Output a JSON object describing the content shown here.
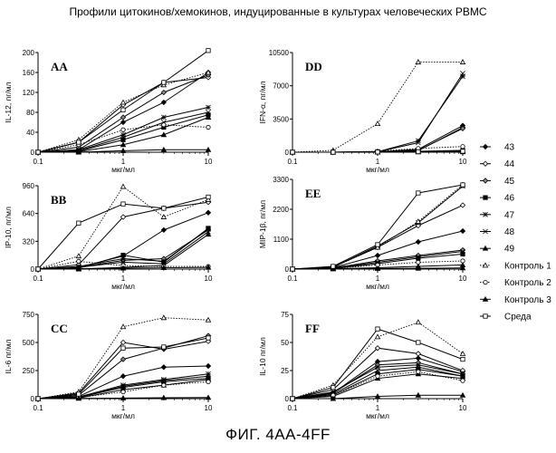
{
  "title": "Профили цитокинов/хемокинов, индуцированные в культурах человеческих PBMC",
  "caption": "ФИГ. 4АА-4FF",
  "legend": [
    {
      "label": "43",
      "marker": "diamond-filled",
      "dash": "solid"
    },
    {
      "label": "44",
      "marker": "diamond-open",
      "dash": "solid"
    },
    {
      "label": "45",
      "marker": "diamond-grey",
      "dash": "solid"
    },
    {
      "label": "46",
      "marker": "square-filled",
      "dash": "solid"
    },
    {
      "label": "47",
      "marker": "star",
      "dash": "solid"
    },
    {
      "label": "48",
      "marker": "x",
      "dash": "solid"
    },
    {
      "label": "49",
      "marker": "triangle-filled",
      "dash": "solid"
    },
    {
      "label": "Контроль 1",
      "marker": "triangle-open",
      "dash": "dotted"
    },
    {
      "label": "Контроль 2",
      "marker": "circle-open",
      "dash": "dotted"
    },
    {
      "label": "Контроль 3",
      "marker": "triangle-filled",
      "dash": "solid"
    },
    {
      "label": "Среда",
      "marker": "square-open",
      "dash": "solid"
    }
  ],
  "chart_data": [
    {
      "id": "AA",
      "panel_label": "AA",
      "type": "line",
      "xscale": "log",
      "xlabel": "мкг/мл",
      "ylabel": "IL-12, пг/мл",
      "xticks": [
        "0.1",
        "1",
        "10"
      ],
      "yticks": [
        "0",
        "40",
        "80",
        "120",
        "160",
        "200"
      ],
      "ylim": [
        0,
        200
      ],
      "x": [
        0.1,
        0.3,
        1,
        3,
        10
      ],
      "series": [
        {
          "values": [
            0,
            5,
            60,
            100,
            160
          ]
        },
        {
          "values": [
            0,
            20,
            95,
            140,
            150
          ]
        },
        {
          "values": [
            0,
            10,
            70,
            120,
            155
          ]
        },
        {
          "values": [
            0,
            2,
            25,
            50,
            75
          ]
        },
        {
          "values": [
            0,
            5,
            35,
            70,
            90
          ]
        },
        {
          "values": [
            0,
            3,
            30,
            60,
            80
          ]
        },
        {
          "values": [
            0,
            1,
            15,
            35,
            70
          ]
        },
        {
          "values": [
            0,
            25,
            100,
            135,
            160
          ]
        },
        {
          "values": [
            0,
            15,
            45,
            55,
            50
          ]
        },
        {
          "values": [
            0,
            0,
            3,
            5,
            5
          ]
        },
        {
          "values": [
            0,
            20,
            85,
            140,
            210
          ]
        }
      ]
    },
    {
      "id": "DD",
      "panel_label": "DD",
      "type": "line",
      "xscale": "log",
      "xlabel": "мкг/мл",
      "ylabel": "IFN-α, пг/мл",
      "xticks": [
        "0.1",
        "1",
        "10"
      ],
      "yticks": [
        "0",
        "3500",
        "7000",
        "10500"
      ],
      "ylim": [
        0,
        10500
      ],
      "x": [
        0.1,
        0.3,
        1,
        3,
        10
      ],
      "series": [
        {
          "values": [
            0,
            0,
            50,
            300,
            2800
          ]
        },
        {
          "values": [
            0,
            0,
            30,
            150,
            2600
          ]
        },
        {
          "values": [
            0,
            0,
            30,
            200,
            2500
          ]
        },
        {
          "values": [
            0,
            0,
            20,
            100,
            200
          ]
        },
        {
          "values": [
            0,
            0,
            50,
            1200,
            8000
          ]
        },
        {
          "values": [
            0,
            0,
            40,
            1000,
            8300
          ]
        },
        {
          "values": [
            0,
            0,
            10,
            50,
            150
          ]
        },
        {
          "values": [
            0,
            200,
            3000,
            9500,
            9500
          ]
        },
        {
          "values": [
            0,
            0,
            100,
            400,
            600
          ]
        },
        {
          "values": [
            0,
            0,
            10,
            20,
            30
          ]
        },
        {
          "values": [
            0,
            0,
            20,
            50,
            100
          ]
        }
      ]
    },
    {
      "id": "BB",
      "panel_label": "BB",
      "type": "line",
      "xscale": "log",
      "xlabel": "мкг/мл",
      "ylabel": "IP-10, пг/мл",
      "xticks": [
        "0.1",
        "1",
        "10"
      ],
      "yticks": [
        "0",
        "320",
        "640",
        "960"
      ],
      "ylim": [
        0,
        960
      ],
      "x": [
        0.1,
        0.3,
        1,
        3,
        10
      ],
      "series": [
        {
          "values": [
            0,
            20,
            150,
            450,
            650
          ]
        },
        {
          "values": [
            0,
            50,
            600,
            700,
            770
          ]
        },
        {
          "values": [
            0,
            20,
            100,
            120,
            450
          ]
        },
        {
          "values": [
            0,
            10,
            160,
            80,
            470
          ]
        },
        {
          "values": [
            0,
            30,
            120,
            90,
            460
          ]
        },
        {
          "values": [
            0,
            20,
            80,
            60,
            430
          ]
        },
        {
          "values": [
            0,
            0,
            20,
            40,
            400
          ]
        },
        {
          "values": [
            0,
            150,
            950,
            600,
            800
          ]
        },
        {
          "values": [
            0,
            90,
            40,
            30,
            30
          ]
        },
        {
          "values": [
            0,
            5,
            10,
            15,
            20
          ]
        },
        {
          "values": [
            0,
            530,
            750,
            700,
            830
          ]
        }
      ]
    },
    {
      "id": "EE",
      "panel_label": "EE",
      "type": "line",
      "xscale": "log",
      "xlabel": "мкг/мл",
      "ylabel": "MIP-1β, пг/мл",
      "xticks": [
        "0.1",
        "1",
        "10"
      ],
      "yticks": [
        "0",
        "1100",
        "2200",
        "3300"
      ],
      "ylim": [
        0,
        3300
      ],
      "x": [
        0.1,
        0.3,
        1,
        3,
        10
      ],
      "series": [
        {
          "values": [
            0,
            50,
            500,
            1000,
            1400
          ]
        },
        {
          "values": [
            0,
            80,
            800,
            1600,
            2350
          ]
        },
        {
          "values": [
            0,
            40,
            300,
            500,
            700
          ]
        },
        {
          "values": [
            0,
            20,
            200,
            400,
            550
          ]
        },
        {
          "values": [
            0,
            60,
            850,
            1700,
            3050
          ]
        },
        {
          "values": [
            0,
            30,
            250,
            450,
            650
          ]
        },
        {
          "values": [
            0,
            10,
            50,
            100,
            150
          ]
        },
        {
          "values": [
            0,
            70,
            800,
            1750,
            3100
          ]
        },
        {
          "values": [
            0,
            20,
            150,
            250,
            300
          ]
        },
        {
          "values": [
            0,
            5,
            20,
            30,
            40
          ]
        },
        {
          "values": [
            0,
            100,
            900,
            2800,
            3100
          ]
        }
      ]
    },
    {
      "id": "CC",
      "panel_label": "CC",
      "type": "line",
      "xscale": "log",
      "xlabel": "мкг/мл",
      "ylabel": "IL-6 пг/мл",
      "xticks": [
        "0.1",
        "1",
        "10"
      ],
      "yticks": [
        "0",
        "250",
        "500",
        "750"
      ],
      "ylim": [
        0,
        750
      ],
      "x": [
        0.1,
        0.3,
        1,
        3,
        10
      ],
      "series": [
        {
          "values": [
            0,
            20,
            200,
            280,
            290
          ]
        },
        {
          "values": [
            0,
            50,
            500,
            440,
            510
          ]
        },
        {
          "values": [
            0,
            30,
            350,
            450,
            560
          ]
        },
        {
          "values": [
            0,
            10,
            100,
            150,
            180
          ]
        },
        {
          "values": [
            0,
            15,
            120,
            170,
            220
          ]
        },
        {
          "values": [
            0,
            10,
            110,
            160,
            200
          ]
        },
        {
          "values": [
            0,
            5,
            80,
            120,
            170
          ]
        },
        {
          "values": [
            0,
            60,
            640,
            720,
            700
          ]
        },
        {
          "values": [
            0,
            10,
            60,
            120,
            150
          ]
        },
        {
          "values": [
            0,
            2,
            5,
            8,
            10
          ]
        },
        {
          "values": [
            0,
            40,
            450,
            460,
            540
          ]
        }
      ]
    },
    {
      "id": "FF",
      "panel_label": "FF",
      "type": "line",
      "xscale": "log",
      "xlabel": "мкг/мл",
      "ylabel": "IL-10 пг/мл",
      "xticks": [
        "0.1",
        "1",
        "10"
      ],
      "yticks": [
        "0",
        "25",
        "50",
        "75"
      ],
      "ylim": [
        0,
        75
      ],
      "x": [
        0.1,
        0.3,
        1,
        3,
        10
      ],
      "series": [
        {
          "values": [
            0,
            5,
            33,
            36,
            24
          ]
        },
        {
          "values": [
            0,
            8,
            45,
            40,
            25
          ]
        },
        {
          "values": [
            0,
            5,
            30,
            32,
            22
          ]
        },
        {
          "values": [
            0,
            3,
            22,
            26,
            20
          ]
        },
        {
          "values": [
            0,
            6,
            28,
            30,
            22
          ]
        },
        {
          "values": [
            0,
            4,
            25,
            28,
            20
          ]
        },
        {
          "values": [
            0,
            2,
            18,
            22,
            18
          ]
        },
        {
          "values": [
            0,
            12,
            55,
            68,
            40
          ]
        },
        {
          "values": [
            0,
            3,
            20,
            24,
            16
          ]
        },
        {
          "values": [
            0,
            0,
            2,
            3,
            3
          ]
        },
        {
          "values": [
            0,
            10,
            62,
            50,
            35
          ]
        }
      ]
    }
  ]
}
